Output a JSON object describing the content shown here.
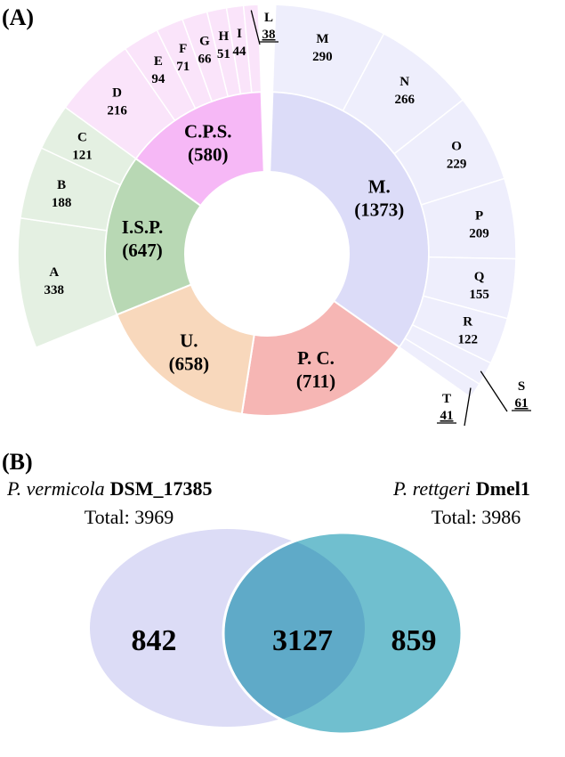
{
  "panel_a_label": "(A)",
  "panel_b_label": "(B)",
  "chart_data": [
    {
      "type": "sunburst",
      "inner": [
        {
          "label": "M.",
          "value": "(1373)",
          "n": 1373,
          "color": "#dcdcf8"
        },
        {
          "label": "P. C.",
          "value": "(711)",
          "n": 711,
          "color": "#f6b6b4"
        },
        {
          "label": "U.",
          "value": "(658)",
          "n": 658,
          "color": "#f8d8bc"
        },
        {
          "label": "I.S.P.",
          "value": "(647)",
          "n": 647,
          "color": "#b8d8b4"
        },
        {
          "label": "C.P.S.",
          "value": "(580)",
          "n": 580,
          "color": "#f6b8f6"
        }
      ],
      "outer": [
        {
          "label": "M",
          "value": 290,
          "parent": "M."
        },
        {
          "label": "N",
          "value": 266,
          "parent": "M."
        },
        {
          "label": "O",
          "value": 229,
          "parent": "M."
        },
        {
          "label": "P",
          "value": 209,
          "parent": "M."
        },
        {
          "label": "Q",
          "value": 155,
          "parent": "M."
        },
        {
          "label": "R",
          "value": 122,
          "parent": "M."
        },
        {
          "label": "S",
          "value": 61,
          "parent": "M."
        },
        {
          "label": "T",
          "value": 41,
          "parent": "M."
        },
        {
          "label": "A",
          "value": 338,
          "parent": "I.S.P."
        },
        {
          "label": "B",
          "value": 188,
          "parent": "I.S.P."
        },
        {
          "label": "C",
          "value": 121,
          "parent": "I.S.P."
        },
        {
          "label": "D",
          "value": 216,
          "parent": "C.P.S."
        },
        {
          "label": "E",
          "value": 94,
          "parent": "C.P.S."
        },
        {
          "label": "F",
          "value": 71,
          "parent": "C.P.S."
        },
        {
          "label": "G",
          "value": 66,
          "parent": "C.P.S."
        },
        {
          "label": "H",
          "value": 51,
          "parent": "C.P.S."
        },
        {
          "label": "I",
          "value": 44,
          "parent": "C.P.S."
        },
        {
          "label": "L",
          "value": 38,
          "parent": "C.P.S."
        }
      ]
    },
    {
      "type": "venn",
      "sets": [
        {
          "species": "P. vermicola",
          "strain": "DSM_17385",
          "total_label": "Total: 3969",
          "total": 3969,
          "unique": 842,
          "color": "#dcdcf6"
        },
        {
          "species": "P. rettgeri",
          "strain": "Dmel1",
          "total_label": "Total: 3986",
          "total": 3986,
          "unique": 859,
          "color": "#68bccc"
        }
      ],
      "intersection": 3127,
      "overlap_color": "#5aaac8"
    }
  ]
}
